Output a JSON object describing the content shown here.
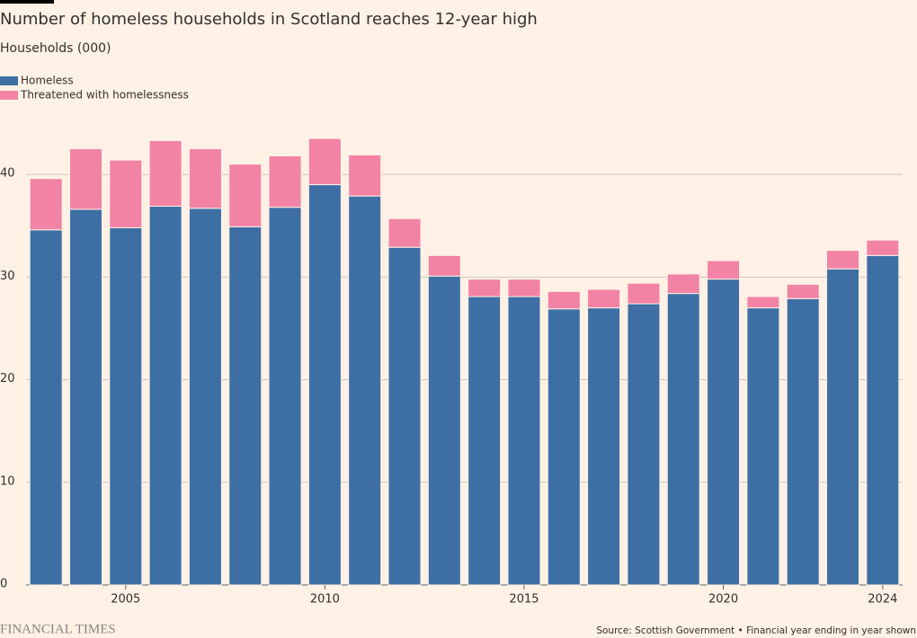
{
  "chart_data": {
    "type": "stacked_bar",
    "title": "Number of homeless households in Scotland reaches 12-year high",
    "subtitle": "Households (000)",
    "categories": [
      null,
      null,
      "2005",
      null,
      null,
      null,
      null,
      "2010",
      null,
      null,
      null,
      null,
      "2015",
      null,
      null,
      null,
      null,
      "2020",
      null,
      null,
      null,
      "2024"
    ],
    "series": [
      {
        "name": "Homeless",
        "color": "#3d6fa5",
        "values": [
          34.6,
          36.6,
          34.8,
          36.9,
          36.7,
          34.9,
          36.8,
          39.0,
          37.9,
          32.9,
          30.1,
          28.1,
          28.1,
          26.9,
          27.0,
          27.4,
          28.4,
          29.8,
          27.0,
          27.9,
          30.8,
          32.1
        ]
      },
      {
        "name": "Threatened with homelessness",
        "color": "#f283a5",
        "values": [
          5.0,
          5.9,
          6.6,
          6.4,
          5.8,
          6.1,
          5.0,
          4.5,
          4.0,
          2.8,
          2.0,
          1.7,
          1.7,
          1.7,
          1.8,
          2.0,
          1.9,
          1.8,
          1.1,
          1.4,
          1.8,
          1.5
        ]
      }
    ],
    "ylim": [
      0,
      45
    ],
    "yticks": [
      0,
      10,
      20,
      30,
      40
    ],
    "grid": true,
    "legend": "top-left",
    "source": "Source: Scottish Government • Financial year ending in year shown",
    "brand": "FINANCIAL TIMES"
  }
}
